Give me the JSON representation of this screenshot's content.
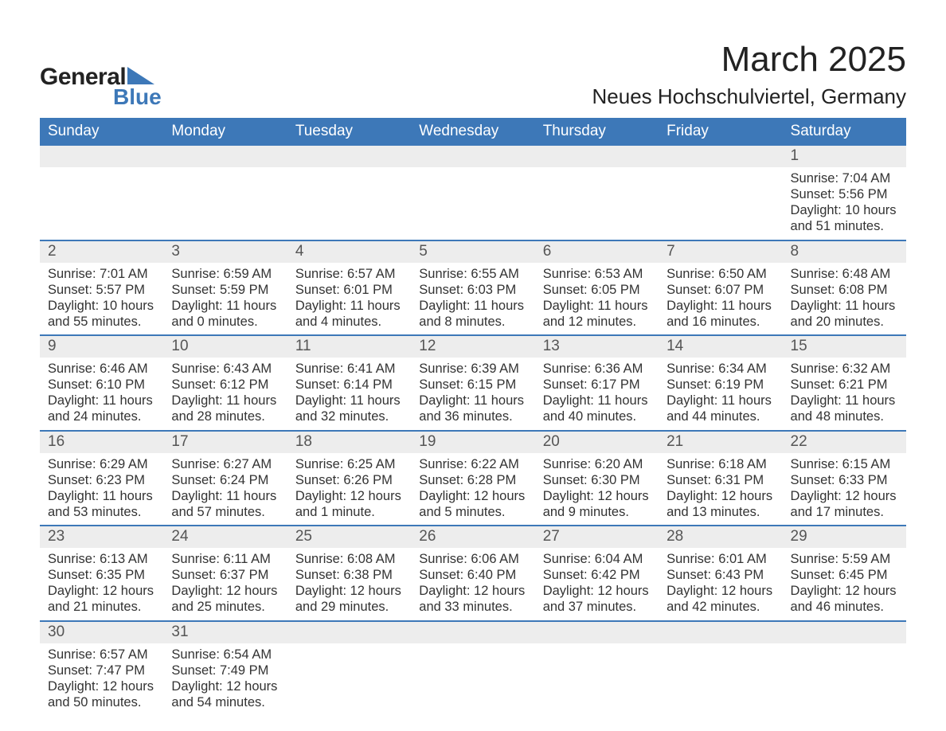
{
  "logo": {
    "general": "General",
    "blue": "Blue"
  },
  "title": "March 2025",
  "location": "Neues Hochschulviertel, Germany",
  "colors": {
    "header_bg": "#3d78b8",
    "daynum_bg": "#ededed",
    "text": "#333333",
    "logo_blue": "#3d78b8"
  },
  "daysOfWeek": [
    "Sunday",
    "Monday",
    "Tuesday",
    "Wednesday",
    "Thursday",
    "Friday",
    "Saturday"
  ],
  "weeks": [
    [
      {
        "n": "",
        "sunrise": "",
        "sunset": "",
        "daylight": ""
      },
      {
        "n": "",
        "sunrise": "",
        "sunset": "",
        "daylight": ""
      },
      {
        "n": "",
        "sunrise": "",
        "sunset": "",
        "daylight": ""
      },
      {
        "n": "",
        "sunrise": "",
        "sunset": "",
        "daylight": ""
      },
      {
        "n": "",
        "sunrise": "",
        "sunset": "",
        "daylight": ""
      },
      {
        "n": "",
        "sunrise": "",
        "sunset": "",
        "daylight": ""
      },
      {
        "n": "1",
        "sunrise": "Sunrise: 7:04 AM",
        "sunset": "Sunset: 5:56 PM",
        "daylight": "Daylight: 10 hours and 51 minutes."
      }
    ],
    [
      {
        "n": "2",
        "sunrise": "Sunrise: 7:01 AM",
        "sunset": "Sunset: 5:57 PM",
        "daylight": "Daylight: 10 hours and 55 minutes."
      },
      {
        "n": "3",
        "sunrise": "Sunrise: 6:59 AM",
        "sunset": "Sunset: 5:59 PM",
        "daylight": "Daylight: 11 hours and 0 minutes."
      },
      {
        "n": "4",
        "sunrise": "Sunrise: 6:57 AM",
        "sunset": "Sunset: 6:01 PM",
        "daylight": "Daylight: 11 hours and 4 minutes."
      },
      {
        "n": "5",
        "sunrise": "Sunrise: 6:55 AM",
        "sunset": "Sunset: 6:03 PM",
        "daylight": "Daylight: 11 hours and 8 minutes."
      },
      {
        "n": "6",
        "sunrise": "Sunrise: 6:53 AM",
        "sunset": "Sunset: 6:05 PM",
        "daylight": "Daylight: 11 hours and 12 minutes."
      },
      {
        "n": "7",
        "sunrise": "Sunrise: 6:50 AM",
        "sunset": "Sunset: 6:07 PM",
        "daylight": "Daylight: 11 hours and 16 minutes."
      },
      {
        "n": "8",
        "sunrise": "Sunrise: 6:48 AM",
        "sunset": "Sunset: 6:08 PM",
        "daylight": "Daylight: 11 hours and 20 minutes."
      }
    ],
    [
      {
        "n": "9",
        "sunrise": "Sunrise: 6:46 AM",
        "sunset": "Sunset: 6:10 PM",
        "daylight": "Daylight: 11 hours and 24 minutes."
      },
      {
        "n": "10",
        "sunrise": "Sunrise: 6:43 AM",
        "sunset": "Sunset: 6:12 PM",
        "daylight": "Daylight: 11 hours and 28 minutes."
      },
      {
        "n": "11",
        "sunrise": "Sunrise: 6:41 AM",
        "sunset": "Sunset: 6:14 PM",
        "daylight": "Daylight: 11 hours and 32 minutes."
      },
      {
        "n": "12",
        "sunrise": "Sunrise: 6:39 AM",
        "sunset": "Sunset: 6:15 PM",
        "daylight": "Daylight: 11 hours and 36 minutes."
      },
      {
        "n": "13",
        "sunrise": "Sunrise: 6:36 AM",
        "sunset": "Sunset: 6:17 PM",
        "daylight": "Daylight: 11 hours and 40 minutes."
      },
      {
        "n": "14",
        "sunrise": "Sunrise: 6:34 AM",
        "sunset": "Sunset: 6:19 PM",
        "daylight": "Daylight: 11 hours and 44 minutes."
      },
      {
        "n": "15",
        "sunrise": "Sunrise: 6:32 AM",
        "sunset": "Sunset: 6:21 PM",
        "daylight": "Daylight: 11 hours and 48 minutes."
      }
    ],
    [
      {
        "n": "16",
        "sunrise": "Sunrise: 6:29 AM",
        "sunset": "Sunset: 6:23 PM",
        "daylight": "Daylight: 11 hours and 53 minutes."
      },
      {
        "n": "17",
        "sunrise": "Sunrise: 6:27 AM",
        "sunset": "Sunset: 6:24 PM",
        "daylight": "Daylight: 11 hours and 57 minutes."
      },
      {
        "n": "18",
        "sunrise": "Sunrise: 6:25 AM",
        "sunset": "Sunset: 6:26 PM",
        "daylight": "Daylight: 12 hours and 1 minute."
      },
      {
        "n": "19",
        "sunrise": "Sunrise: 6:22 AM",
        "sunset": "Sunset: 6:28 PM",
        "daylight": "Daylight: 12 hours and 5 minutes."
      },
      {
        "n": "20",
        "sunrise": "Sunrise: 6:20 AM",
        "sunset": "Sunset: 6:30 PM",
        "daylight": "Daylight: 12 hours and 9 minutes."
      },
      {
        "n": "21",
        "sunrise": "Sunrise: 6:18 AM",
        "sunset": "Sunset: 6:31 PM",
        "daylight": "Daylight: 12 hours and 13 minutes."
      },
      {
        "n": "22",
        "sunrise": "Sunrise: 6:15 AM",
        "sunset": "Sunset: 6:33 PM",
        "daylight": "Daylight: 12 hours and 17 minutes."
      }
    ],
    [
      {
        "n": "23",
        "sunrise": "Sunrise: 6:13 AM",
        "sunset": "Sunset: 6:35 PM",
        "daylight": "Daylight: 12 hours and 21 minutes."
      },
      {
        "n": "24",
        "sunrise": "Sunrise: 6:11 AM",
        "sunset": "Sunset: 6:37 PM",
        "daylight": "Daylight: 12 hours and 25 minutes."
      },
      {
        "n": "25",
        "sunrise": "Sunrise: 6:08 AM",
        "sunset": "Sunset: 6:38 PM",
        "daylight": "Daylight: 12 hours and 29 minutes."
      },
      {
        "n": "26",
        "sunrise": "Sunrise: 6:06 AM",
        "sunset": "Sunset: 6:40 PM",
        "daylight": "Daylight: 12 hours and 33 minutes."
      },
      {
        "n": "27",
        "sunrise": "Sunrise: 6:04 AM",
        "sunset": "Sunset: 6:42 PM",
        "daylight": "Daylight: 12 hours and 37 minutes."
      },
      {
        "n": "28",
        "sunrise": "Sunrise: 6:01 AM",
        "sunset": "Sunset: 6:43 PM",
        "daylight": "Daylight: 12 hours and 42 minutes."
      },
      {
        "n": "29",
        "sunrise": "Sunrise: 5:59 AM",
        "sunset": "Sunset: 6:45 PM",
        "daylight": "Daylight: 12 hours and 46 minutes."
      }
    ],
    [
      {
        "n": "30",
        "sunrise": "Sunrise: 6:57 AM",
        "sunset": "Sunset: 7:47 PM",
        "daylight": "Daylight: 12 hours and 50 minutes."
      },
      {
        "n": "31",
        "sunrise": "Sunrise: 6:54 AM",
        "sunset": "Sunset: 7:49 PM",
        "daylight": "Daylight: 12 hours and 54 minutes."
      },
      {
        "n": "",
        "sunrise": "",
        "sunset": "",
        "daylight": ""
      },
      {
        "n": "",
        "sunrise": "",
        "sunset": "",
        "daylight": ""
      },
      {
        "n": "",
        "sunrise": "",
        "sunset": "",
        "daylight": ""
      },
      {
        "n": "",
        "sunrise": "",
        "sunset": "",
        "daylight": ""
      },
      {
        "n": "",
        "sunrise": "",
        "sunset": "",
        "daylight": ""
      }
    ]
  ]
}
